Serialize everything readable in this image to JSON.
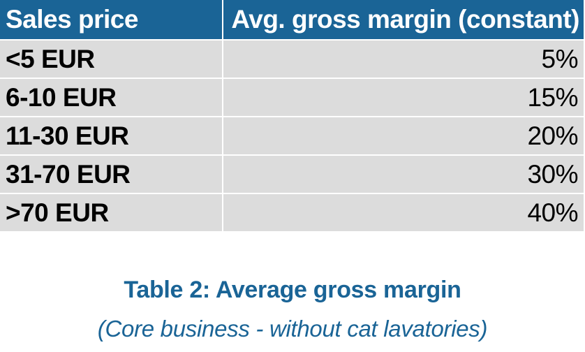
{
  "table": {
    "headers": [
      "Sales price",
      "Avg. gross margin (constant)"
    ],
    "rows": [
      {
        "price": "<5 EUR",
        "margin": "5%"
      },
      {
        "price": "6-10 EUR",
        "margin": "15%"
      },
      {
        "price": "11-30 EUR",
        "margin": "20%"
      },
      {
        "price": "31-70 EUR",
        "margin": "30%"
      },
      {
        "price": ">70 EUR",
        "margin": "40%"
      }
    ]
  },
  "caption": {
    "title": "Table 2: Average gross margin",
    "subtitle": "(Core business - without cat lavatories)"
  },
  "colors": {
    "header_bg": "#1a6496",
    "row_bg": "#dcdcdc",
    "caption": "#1a6496"
  }
}
